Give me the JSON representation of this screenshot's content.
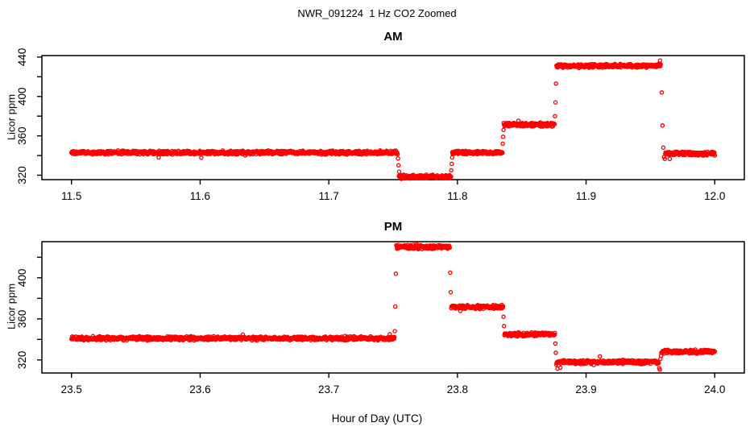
{
  "header": {
    "title": "NWR_091224  1 Hz CO2 Zoomed"
  },
  "footer": {
    "xlabel": "Hour of Day (UTC)"
  },
  "style": {
    "point_color": "#ff0000",
    "axis_color": "#000000",
    "background": "#ffffff",
    "marker": "open-circle",
    "marker_radius": 2.1,
    "marker_stroke_width": 1.3,
    "noise_half_range_ppm": 2.2,
    "sample_rate_per_hour": 3600
  },
  "chart_data": [
    {
      "type": "scatter",
      "panel": "AM",
      "title": "AM",
      "xlabel": "",
      "ylabel": "Licor ppm",
      "xlim": [
        11.477,
        12.023
      ],
      "ylim": [
        315.5,
        441.5
      ],
      "xticks": [
        11.5,
        11.6,
        11.7,
        11.8,
        11.9,
        12.0
      ],
      "xtick_labels": [
        "11.5",
        "11.6",
        "11.7",
        "11.8",
        "11.9",
        "12.0"
      ],
      "yticks": [
        320,
        340,
        360,
        380,
        400,
        420,
        440
      ],
      "ytick_labels": [
        "320",
        "",
        "360",
        "",
        "400",
        "",
        "440"
      ],
      "grid": false,
      "segments": [
        {
          "t0": 11.5,
          "t1": 11.7535,
          "mean": 343.0
        },
        {
          "t0": 11.7545,
          "t1": 11.795,
          "mean": 318.5
        },
        {
          "t0": 11.796,
          "t1": 11.835,
          "mean": 343.0
        },
        {
          "t0": 11.836,
          "t1": 11.8755,
          "mean": 371.5
        },
        {
          "t0": 11.877,
          "t1": 11.958,
          "mean": 431.0
        },
        {
          "t0": 11.9615,
          "t1": 12.0,
          "mean": 342.0
        }
      ],
      "transition_points": [
        [
          11.7538,
          337.0
        ],
        [
          11.7542,
          330.0
        ],
        [
          11.7547,
          323.5
        ],
        [
          11.7952,
          325.0
        ],
        [
          11.7956,
          331.5
        ],
        [
          11.7959,
          338.0
        ],
        [
          11.8352,
          352.0
        ],
        [
          11.8355,
          359.0
        ],
        [
          11.8358,
          366.0
        ],
        [
          11.8758,
          380.0
        ],
        [
          11.8762,
          394.0
        ],
        [
          11.8766,
          413.0
        ],
        [
          11.9575,
          436.5
        ],
        [
          11.9588,
          404.0
        ],
        [
          11.9594,
          370.5
        ],
        [
          11.96,
          348.0
        ],
        [
          11.9606,
          338.5
        ],
        [
          11.9612,
          336.5
        ],
        [
          11.965,
          336.5
        ]
      ]
    },
    {
      "type": "scatter",
      "panel": "PM",
      "title": "PM",
      "xlabel": "",
      "ylabel": "Licor ppm",
      "xlim": [
        23.477,
        24.023
      ],
      "ylim": [
        307.3,
        435.2
      ],
      "xticks": [
        23.5,
        23.6,
        23.7,
        23.8,
        23.9,
        24.0
      ],
      "xtick_labels": [
        "23.5",
        "23.6",
        "23.7",
        "23.8",
        "23.9",
        "24.0"
      ],
      "yticks": [
        320,
        340,
        360,
        380,
        400,
        420
      ],
      "ytick_labels": [
        "320",
        "",
        "360",
        "",
        "400",
        ""
      ],
      "grid": false,
      "segments": [
        {
          "t0": 23.5,
          "t1": 23.751,
          "mean": 341.0
        },
        {
          "t0": 23.7525,
          "t1": 23.794,
          "mean": 430.0
        },
        {
          "t0": 23.7952,
          "t1": 23.8355,
          "mean": 371.5
        },
        {
          "t0": 23.8365,
          "t1": 23.8758,
          "mean": 345.0
        },
        {
          "t0": 23.8772,
          "t1": 23.9565,
          "mean": 318.0
        },
        {
          "t0": 23.9585,
          "t1": 24.0,
          "mean": 328.0
        }
      ],
      "transition_points": [
        [
          23.7513,
          348.0
        ],
        [
          23.7517,
          372.0
        ],
        [
          23.7521,
          404.0
        ],
        [
          23.7944,
          405.0
        ],
        [
          23.7948,
          386.0
        ],
        [
          23.8358,
          362.0
        ],
        [
          23.8362,
          353.0
        ],
        [
          23.8761,
          336.0
        ],
        [
          23.8765,
          327.0
        ],
        [
          23.8768,
          315.5
        ],
        [
          23.8778,
          311.5
        ],
        [
          23.88,
          312.5
        ],
        [
          23.9568,
          312.0
        ],
        [
          23.9573,
          310.5
        ],
        [
          23.9578,
          321.0
        ],
        [
          23.9582,
          324.0
        ]
      ]
    }
  ]
}
